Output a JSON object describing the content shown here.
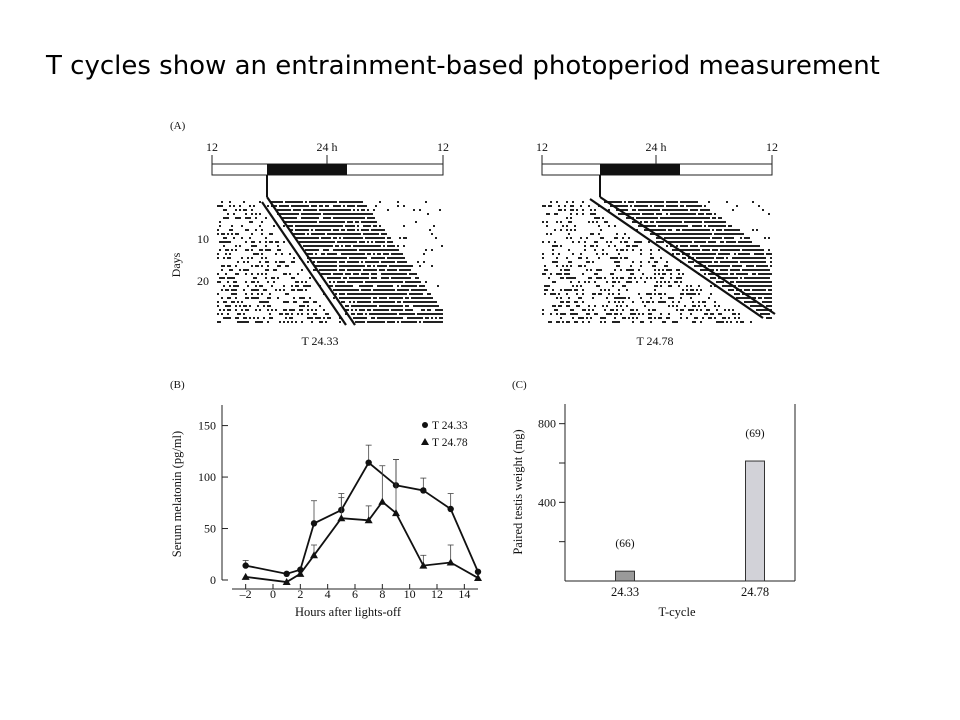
{
  "slide": {
    "title": "T cycles show an entrainment-based photoperiod measurement"
  },
  "chart_data": [
    {
      "panel": "(A)",
      "type": "actogram",
      "plots": [
        {
          "name": "T 24.33",
          "bar_ticks": [
            "12",
            "24 h",
            "12"
          ],
          "yaxis_label": "Days",
          "yticks": [
            10,
            20
          ]
        },
        {
          "name": "T 24.78",
          "bar_ticks": [
            "12",
            "24 h",
            "12"
          ]
        }
      ]
    },
    {
      "panel": "(B)",
      "type": "line",
      "xlabel": "Hours after lights-off",
      "ylabel": "Serum melatonin (pg/ml)",
      "xticks": [
        "–2",
        "0",
        "2",
        "4",
        "6",
        "8",
        "10",
        "12",
        "14"
      ],
      "yticks": [
        "0",
        "50",
        "100",
        "150"
      ],
      "xlim": [
        -3,
        15
      ],
      "ylim": [
        0,
        170
      ],
      "series": [
        {
          "name": "T 24.33",
          "marker": "circle",
          "x": [
            -2,
            1,
            2,
            3,
            5,
            7,
            9,
            11,
            13,
            15
          ],
          "y": [
            14,
            6,
            10,
            55,
            68,
            114,
            92,
            87,
            69,
            8
          ],
          "err": [
            5,
            0,
            0,
            22,
            16,
            17,
            25,
            12,
            15,
            0
          ]
        },
        {
          "name": "T 24.78",
          "marker": "triangle",
          "x": [
            -2,
            1,
            2,
            3,
            5,
            7,
            8,
            9,
            11,
            13,
            15
          ],
          "y": [
            3,
            -2,
            6,
            24,
            60,
            58,
            76,
            65,
            14,
            17,
            2
          ],
          "err": [
            0,
            0,
            0,
            10,
            20,
            14,
            35,
            52,
            10,
            17,
            0
          ]
        }
      ]
    },
    {
      "panel": "(C)",
      "type": "bar",
      "xlabel": "T-cycle",
      "ylabel": "Paired testis weight (mg)",
      "categories": [
        "24.33",
        "24.78"
      ],
      "values": [
        50,
        610
      ],
      "bar_labels": [
        "(66)",
        "(69)"
      ],
      "bar_colors": [
        "#9a9a9a",
        "#d2d2d8"
      ],
      "yticks": [
        "400",
        "800"
      ],
      "ylim": [
        0,
        900
      ]
    }
  ]
}
